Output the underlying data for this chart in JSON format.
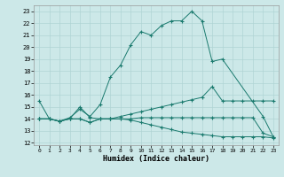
{
  "xlabel": "Humidex (Indice chaleur)",
  "xlim": [
    -0.5,
    23.5
  ],
  "ylim": [
    11.8,
    23.5
  ],
  "xticks": [
    0,
    1,
    2,
    3,
    4,
    5,
    6,
    7,
    8,
    9,
    10,
    11,
    12,
    13,
    14,
    15,
    16,
    17,
    18,
    19,
    20,
    21,
    22,
    23
  ],
  "yticks": [
    12,
    13,
    14,
    15,
    16,
    17,
    18,
    19,
    20,
    21,
    22,
    23
  ],
  "bg_color": "#cce8e8",
  "grid_color": "#b0d4d4",
  "line_color": "#1a7a6e",
  "lines": [
    {
      "x": [
        0,
        1,
        2,
        3,
        4,
        5,
        6,
        7,
        8,
        9,
        10,
        11,
        12,
        13,
        14,
        15,
        16,
        17,
        18,
        22,
        23
      ],
      "y": [
        15.5,
        14.0,
        13.8,
        14.1,
        14.8,
        14.2,
        15.2,
        17.5,
        18.5,
        20.2,
        21.3,
        21.0,
        21.8,
        22.2,
        22.2,
        23.0,
        22.2,
        18.8,
        19.0,
        14.2,
        12.5
      ],
      "linestyle": "-",
      "marker": true
    },
    {
      "x": [
        0,
        1,
        2,
        3,
        4,
        5,
        6,
        7,
        8,
        9,
        10,
        11,
        12,
        13,
        14,
        15,
        16,
        17,
        18,
        19,
        20,
        21,
        22,
        23
      ],
      "y": [
        14.0,
        14.0,
        13.8,
        14.0,
        15.0,
        14.1,
        14.0,
        14.0,
        14.2,
        14.4,
        14.6,
        14.8,
        15.0,
        15.2,
        15.4,
        15.6,
        15.8,
        16.7,
        15.5,
        15.5,
        15.5,
        15.5,
        15.5,
        15.5
      ],
      "linestyle": "-",
      "marker": true
    },
    {
      "x": [
        0,
        1,
        2,
        3,
        4,
        5,
        6,
        7,
        8,
        9,
        10,
        11,
        12,
        13,
        14,
        15,
        16,
        17,
        18,
        19,
        20,
        21,
        22,
        23
      ],
      "y": [
        14.0,
        14.0,
        13.8,
        14.0,
        14.0,
        13.7,
        14.0,
        14.0,
        14.0,
        14.0,
        14.1,
        14.1,
        14.1,
        14.1,
        14.1,
        14.1,
        14.1,
        14.1,
        14.1,
        14.1,
        14.1,
        14.1,
        12.8,
        12.5
      ],
      "linestyle": "-",
      "marker": true
    },
    {
      "x": [
        0,
        1,
        2,
        3,
        4,
        5,
        6,
        7,
        8,
        9,
        10,
        11,
        12,
        13,
        14,
        15,
        16,
        17,
        18,
        19,
        20,
        21,
        22,
        23
      ],
      "y": [
        14.0,
        14.0,
        13.8,
        14.0,
        14.0,
        13.7,
        14.0,
        14.0,
        14.0,
        13.9,
        13.7,
        13.5,
        13.3,
        13.1,
        12.9,
        12.8,
        12.7,
        12.6,
        12.5,
        12.5,
        12.5,
        12.5,
        12.5,
        12.4
      ],
      "linestyle": "-",
      "marker": true
    }
  ]
}
